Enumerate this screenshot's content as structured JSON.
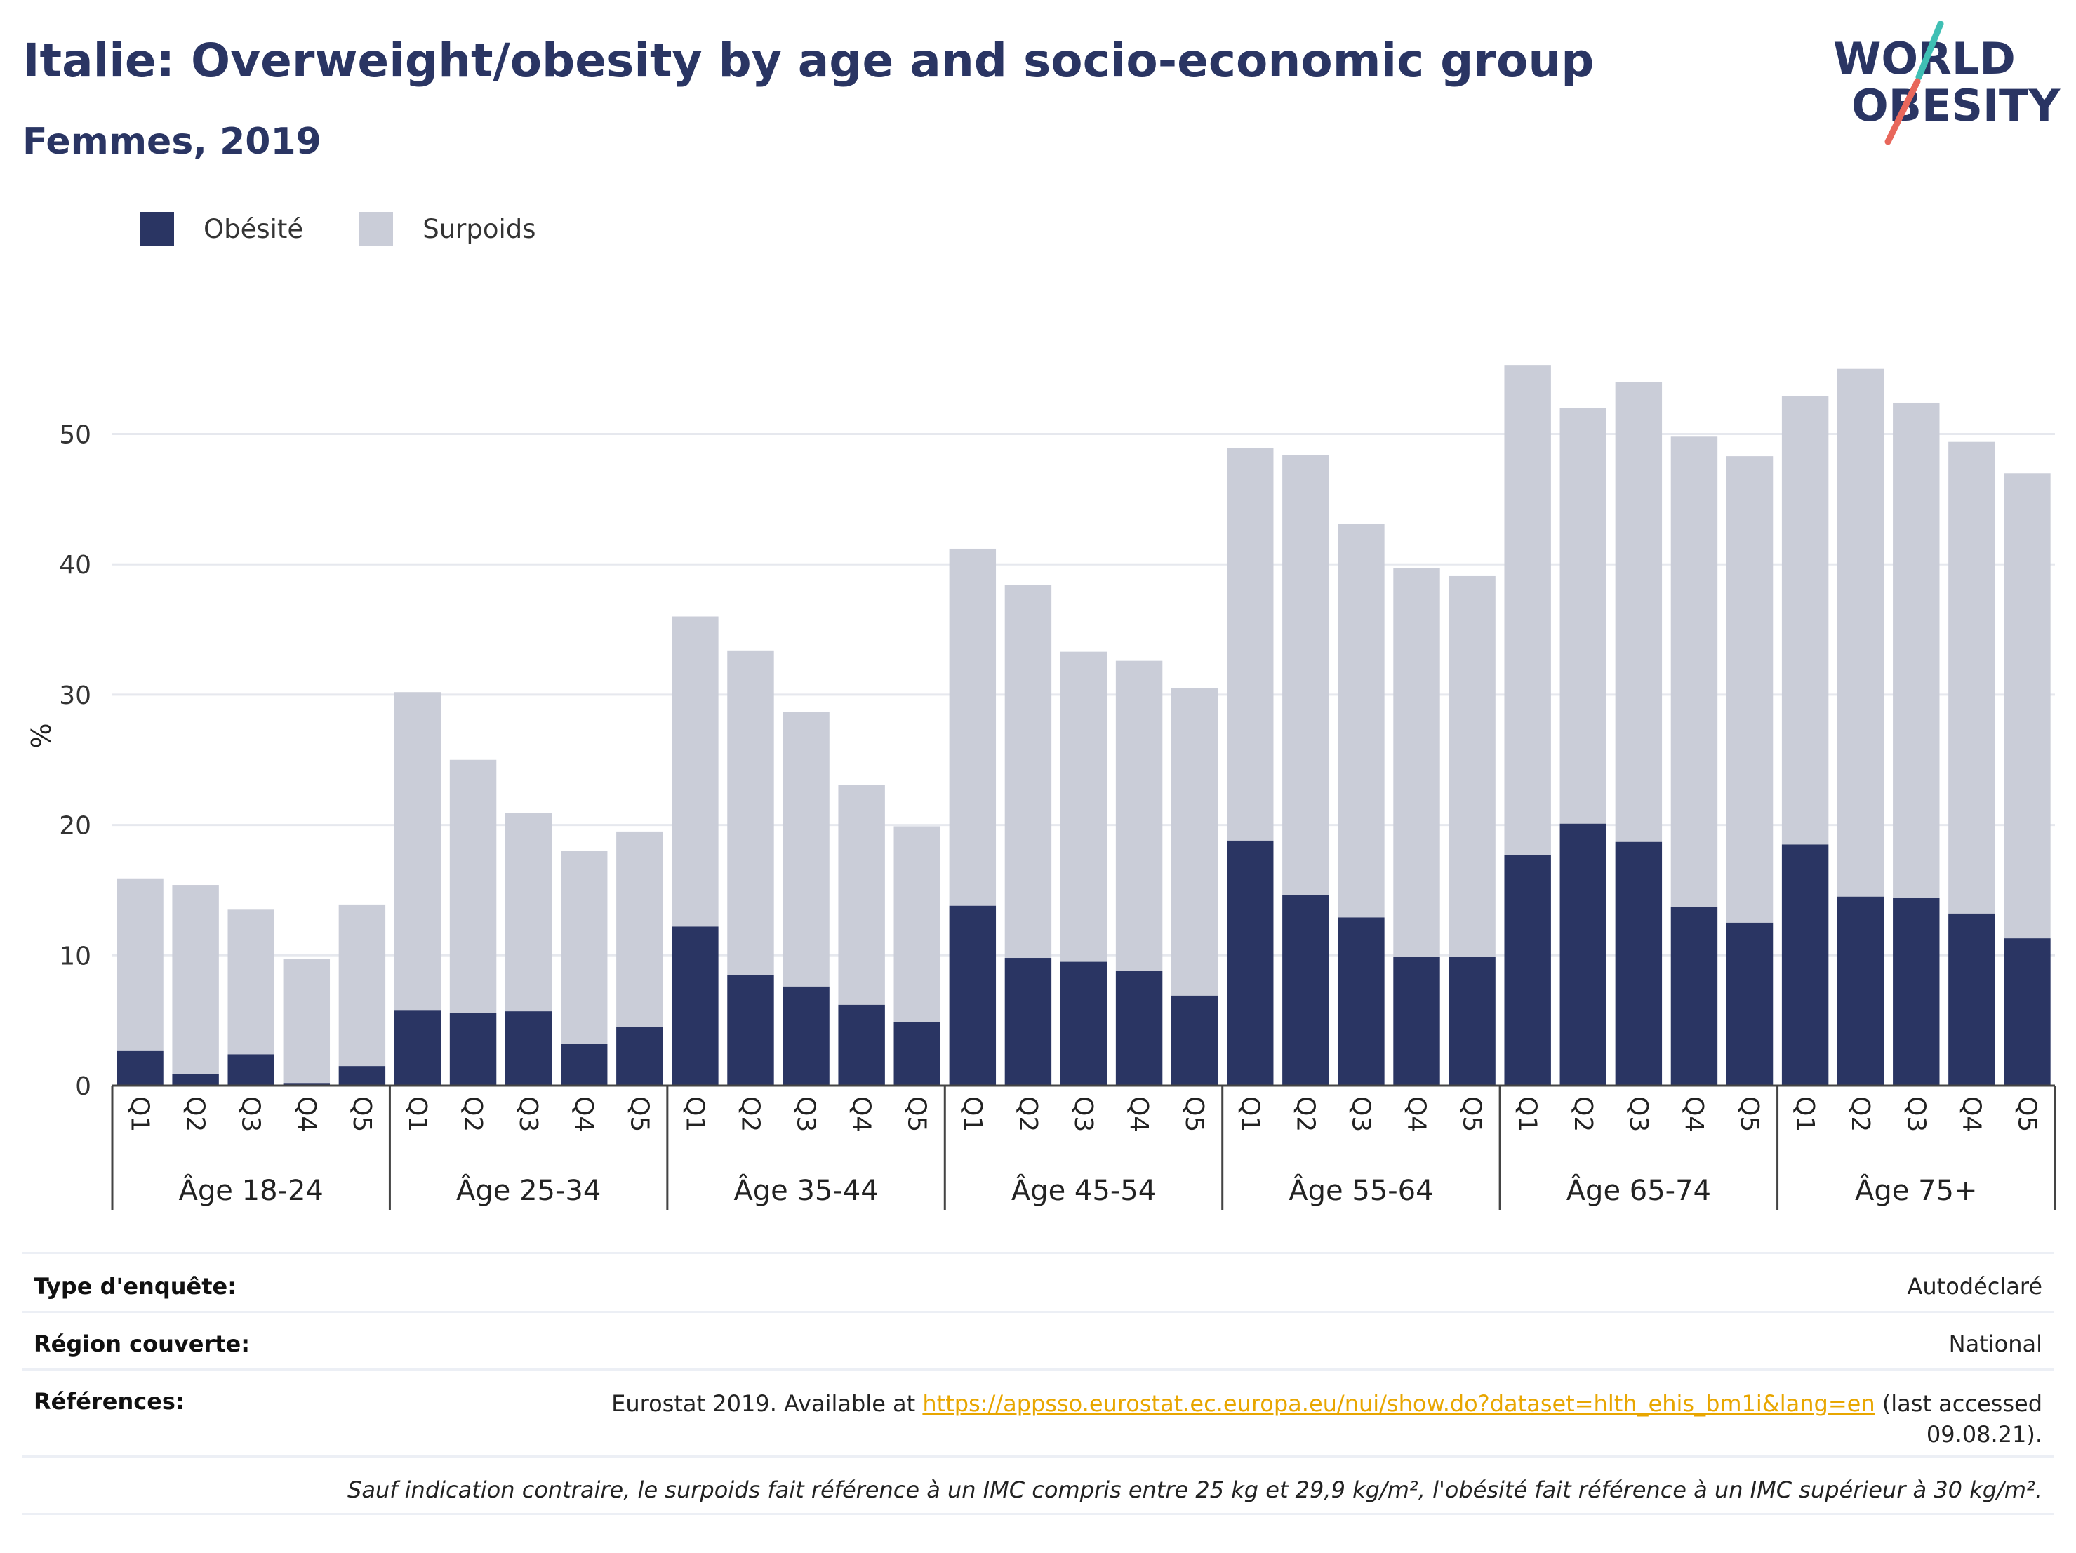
{
  "header": {
    "title": "Italie: Overweight/obesity by age and socio-economic group",
    "subtitle": "Femmes, 2019"
  },
  "logo": {
    "line1": "WORLD",
    "line2": "OBESITY"
  },
  "colors": {
    "obesity": "#2a3563",
    "overweight": "#cacdd8",
    "accent_teal": "#3fbfb4",
    "accent_red": "#e8675b",
    "link": "#e8a600"
  },
  "chart_data": {
    "type": "bar",
    "stacked": true,
    "ylabel": "%",
    "ylim": [
      0,
      58
    ],
    "yticks": [
      0,
      10,
      20,
      30,
      40,
      50
    ],
    "grid": true,
    "legend_position": "top-left",
    "groups": [
      "Âge 18-24",
      "Âge 25-34",
      "Âge 35-44",
      "Âge 45-54",
      "Âge 55-64",
      "Âge 65-74",
      "Âge 75+"
    ],
    "categories": [
      "Q1",
      "Q2",
      "Q3",
      "Q4",
      "Q5"
    ],
    "series": [
      {
        "name": "Obésité",
        "values": [
          [
            2.7,
            0.9,
            2.4,
            0.2,
            1.5
          ],
          [
            5.8,
            5.6,
            5.7,
            3.2,
            4.5
          ],
          [
            12.2,
            8.5,
            7.6,
            6.2,
            4.9
          ],
          [
            13.8,
            9.8,
            9.5,
            8.8,
            6.9
          ],
          [
            18.8,
            14.6,
            12.9,
            9.9,
            9.9
          ],
          [
            17.7,
            20.1,
            18.7,
            13.7,
            12.5
          ],
          [
            18.5,
            14.5,
            14.4,
            13.2,
            11.3
          ]
        ]
      },
      {
        "name": "Surpoids",
        "values": [
          [
            13.2,
            14.5,
            11.1,
            9.5,
            12.4
          ],
          [
            24.4,
            19.4,
            15.2,
            14.8,
            15.0
          ],
          [
            23.8,
            24.9,
            21.1,
            16.9,
            15.0
          ],
          [
            27.4,
            28.6,
            23.8,
            23.8,
            23.6
          ],
          [
            30.1,
            33.8,
            30.2,
            29.8,
            29.2
          ],
          [
            37.6,
            31.9,
            35.3,
            36.1,
            35.8
          ],
          [
            34.4,
            40.5,
            38.0,
            36.2,
            35.7
          ]
        ]
      }
    ]
  },
  "info": {
    "survey_label": "Type d'enquête:",
    "survey_value": "Autodéclaré",
    "region_label": "Région couverte:",
    "region_value": "National",
    "ref_label": "Références:",
    "ref_prefix": "Eurostat 2019. Available at ",
    "ref_link": "https://appsso.eurostat.ec.europa.eu/nui/show.do?dataset=hlth_ehis_bm1i&lang=en",
    "ref_suffix": " (last accessed",
    "ref_date": "09.08.21).",
    "footnote": "Sauf indication contraire, le surpoids fait référence à un IMC compris entre 25 kg et 29,9 kg/m², l'obésité fait référence à un IMC supérieur à 30 kg/m²."
  }
}
